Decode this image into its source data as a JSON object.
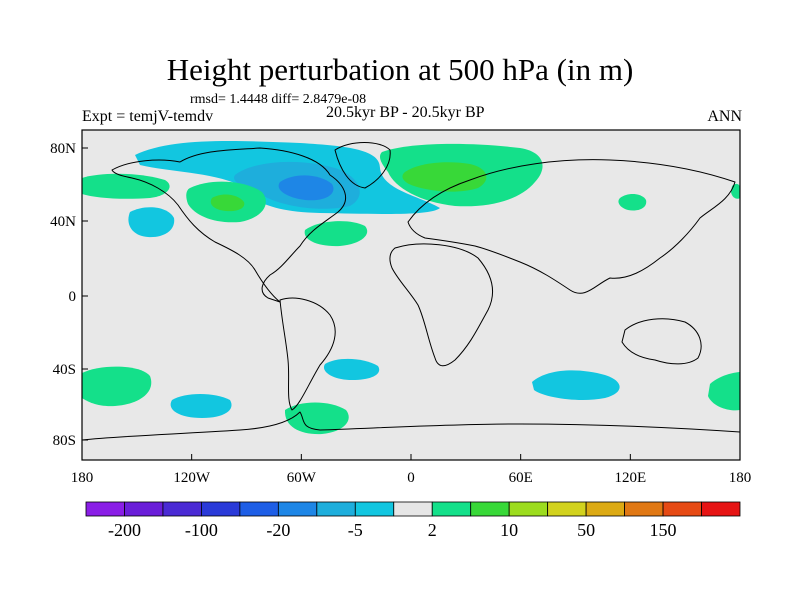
{
  "title": "Height perturbation at 500 hPa (in m)",
  "stats": "rmsd= 1.4448 diff= 2.8479e-08",
  "experiment": "Expt = temjV-temdv",
  "period": "20.5kyr BP - 20.5kyr BP",
  "season": "ANN",
  "lat_ticks": [
    "80N",
    "40N",
    "0",
    "40S",
    "80S"
  ],
  "lon_ticks": [
    "180",
    "120W",
    "60W",
    "0",
    "60E",
    "120E",
    "180"
  ],
  "colorbar": {
    "colors": [
      "#8a1ee6",
      "#6a1ed9",
      "#4a2ad4",
      "#2a3ad8",
      "#1e5ee6",
      "#1e86e6",
      "#1eaedc",
      "#12c6e0",
      "#e6e6e6",
      "#14e08a",
      "#38d838",
      "#9cdc1e",
      "#d2d21e",
      "#dcaa14",
      "#e07814",
      "#e64a14",
      "#e61414"
    ],
    "labels": [
      "-200",
      "-100",
      "-20",
      "-5",
      "2",
      "10",
      "50",
      "150"
    ]
  },
  "anomalies": [
    {
      "color": "#12c6e0",
      "shape": "ne-canada-negative"
    },
    {
      "color": "#1eaedc",
      "shape": "ne-canada-core"
    },
    {
      "color": "#1e86e6",
      "shape": "ne-canada-center"
    },
    {
      "color": "#14e08a",
      "shape": "n-europe-positive"
    },
    {
      "color": "#38d838",
      "shape": "scandinavia-core"
    },
    {
      "color": "#14e08a",
      "shape": "n-pacific-positive"
    },
    {
      "color": "#14e08a",
      "shape": "w-north-america-positive"
    },
    {
      "color": "#38d838",
      "shape": "w-north-america-core"
    },
    {
      "color": "#12c6e0",
      "shape": "ne-pacific-negative"
    },
    {
      "color": "#14e08a",
      "shape": "n-atlantic-positive"
    },
    {
      "color": "#14e08a",
      "shape": "e-asia-positive"
    },
    {
      "color": "#14e08a",
      "shape": "dateline-positive"
    },
    {
      "color": "#12c6e0",
      "shape": "s-atlantic-negative"
    },
    {
      "color": "#12c6e0",
      "shape": "s-indian-negative"
    },
    {
      "color": "#14e08a",
      "shape": "s-pacific-positive"
    },
    {
      "color": "#14e08a",
      "shape": "se-pacific-positive"
    },
    {
      "color": "#12c6e0",
      "shape": "s-pacific-negative"
    },
    {
      "color": "#14e08a",
      "shape": "antarctic-peninsula-positive"
    }
  ]
}
